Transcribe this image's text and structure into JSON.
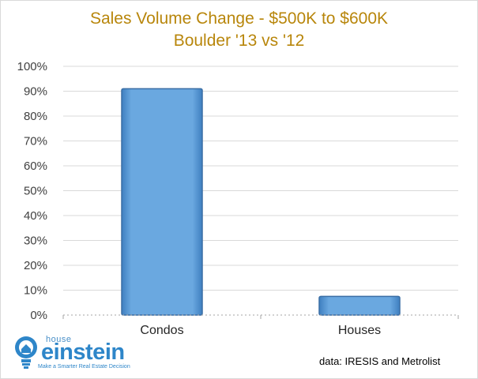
{
  "chart_data": {
    "type": "bar",
    "title": "Sales Volume Change  -  $500K to $600K",
    "subtitle": "Boulder '13 vs '12",
    "categories": [
      "Condos",
      "Houses"
    ],
    "values": [
      91,
      7.5
    ],
    "ylim": [
      0,
      100
    ],
    "yticks": [
      "0%",
      "10%",
      "20%",
      "30%",
      "40%",
      "50%",
      "60%",
      "70%",
      "80%",
      "90%",
      "100%"
    ],
    "grid": true,
    "bar_color": "#5b9bd5",
    "title_color": "#b8860b"
  },
  "logo": {
    "top": "house",
    "name": "einstein",
    "tagline": "Make a Smarter Real Estate Decision"
  },
  "source": "data: IRESIS and Metrolist"
}
